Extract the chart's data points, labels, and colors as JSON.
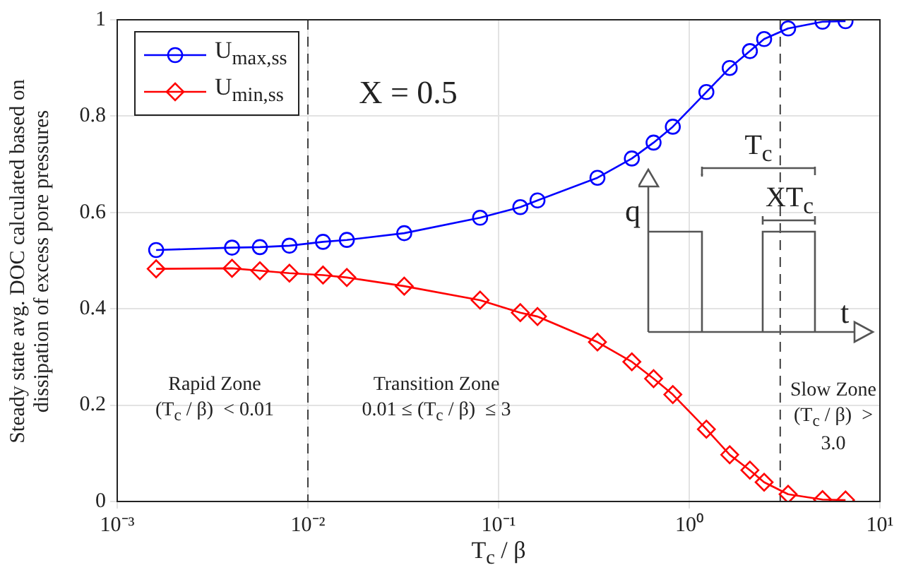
{
  "chart_data": {
    "type": "line",
    "xlabel": "T$_{c}$ / β",
    "ylabel": "Steady state avg. DOC calculated based on\ndissipation of excess pore pressures",
    "x": [
      0.0016,
      0.004,
      0.0056,
      0.008,
      0.012,
      0.016,
      0.032,
      0.08,
      0.13,
      0.16,
      0.33,
      0.5,
      0.65,
      0.82,
      1.23,
      1.63,
      2.08,
      2.47,
      3.3,
      5,
      6.6
    ],
    "series": [
      {
        "name": "U$_{max,ss}$",
        "color": "#0000ff",
        "marker": "circle",
        "values": [
          0.522,
          0.527,
          0.528,
          0.531,
          0.539,
          0.543,
          0.557,
          0.589,
          0.611,
          0.625,
          0.672,
          0.712,
          0.745,
          0.778,
          0.85,
          0.9,
          0.935,
          0.96,
          0.982,
          0.996,
          0.997
        ]
      },
      {
        "name": "U$_{min,ss}$",
        "color": "#ff0000",
        "marker": "diamond",
        "values": [
          0.483,
          0.484,
          0.479,
          0.474,
          0.47,
          0.465,
          0.447,
          0.418,
          0.392,
          0.384,
          0.331,
          0.29,
          0.255,
          0.222,
          0.15,
          0.097,
          0.065,
          0.04,
          0.015,
          0.004,
          0.003
        ]
      }
    ],
    "log": "x",
    "xlim": [
      0.001,
      10
    ],
    "xticks": [
      {
        "value": 0.001,
        "label": "10⁻³"
      },
      {
        "value": 0.01,
        "label": "10⁻²"
      },
      {
        "value": 0.1,
        "label": "10⁻¹"
      },
      {
        "value": 1,
        "label": "10⁰"
      },
      {
        "value": 10,
        "label": "10¹"
      }
    ],
    "ylim": [
      0,
      1
    ],
    "yticks": [
      0,
      0.2,
      0.4,
      0.6,
      0.8,
      1
    ],
    "grid": true,
    "legend": "top left",
    "line_style": "solid",
    "ref_lines": [
      {
        "axis": "x",
        "value": 0.01,
        "color": "#404040",
        "line_style": "dashed"
      },
      {
        "axis": "x",
        "value": 3,
        "color": "#404040",
        "line_style": "dashed"
      }
    ],
    "annotations": [
      "X = 0.5",
      "Rapid Zone\n(T$_{c}$ / β)  < 0.01",
      "Transition Zone\n0.01 ≤ (T$_{c}$ / β)  ≤ 3",
      "Slow Zone\n(T$_{c}$ / β)  >\n3.0",
      "q",
      "t",
      "T$_{c}$",
      "XT$_{c}$"
    ]
  }
}
